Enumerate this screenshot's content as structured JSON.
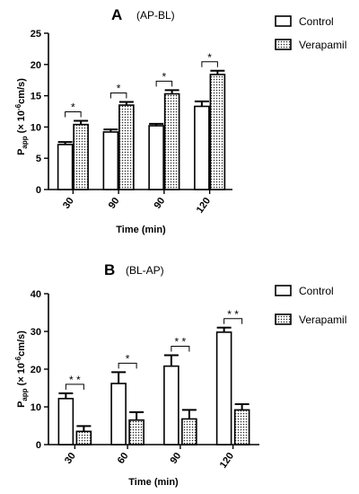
{
  "chart_data": [
    {
      "type": "bar",
      "panel_letter": "A",
      "title": "(AP-BL)",
      "xlabel": "Time (min)",
      "ylabel_main": "P",
      "ylabel_sub": "app",
      "ylabel_unit": "(× 10",
      "ylabel_exp": "-6",
      "ylabel_tail": "cm/s)",
      "ylim": [
        0,
        25
      ],
      "yticks": [
        "0",
        "5",
        "10",
        "15",
        "20",
        "25"
      ],
      "categories": [
        "30",
        "90",
        "90",
        "120"
      ],
      "series": [
        {
          "name": "Control",
          "pattern": "white",
          "values": [
            7.2,
            9.2,
            10.2,
            13.3
          ],
          "errors": [
            0.4,
            0.4,
            0.3,
            0.8
          ]
        },
        {
          "name": "Verapamil",
          "pattern": "dots",
          "values": [
            10.4,
            13.5,
            15.3,
            18.4
          ],
          "errors": [
            0.6,
            0.5,
            0.6,
            0.6
          ]
        }
      ],
      "significance": [
        "*",
        "*",
        "*",
        "*"
      ],
      "legend_position": "top-right"
    },
    {
      "type": "bar",
      "panel_letter": "B",
      "title": "(BL-AP)",
      "xlabel": "Time (min)",
      "ylabel_main": "P",
      "ylabel_sub": "app",
      "ylabel_unit": "(× 10",
      "ylabel_exp": "-6",
      "ylabel_tail": "cm/s)",
      "ylim": [
        0,
        40
      ],
      "yticks": [
        "0",
        "10",
        "20",
        "30",
        "40"
      ],
      "categories": [
        "30",
        "60",
        "90",
        "120"
      ],
      "series": [
        {
          "name": "Control",
          "pattern": "white",
          "values": [
            12.2,
            16.2,
            20.8,
            29.8
          ],
          "errors": [
            1.4,
            3.0,
            2.9,
            1.2
          ]
        },
        {
          "name": "Verapamil",
          "pattern": "dots",
          "values": [
            3.5,
            6.5,
            6.8,
            9.2
          ],
          "errors": [
            1.4,
            2.1,
            2.4,
            1.5
          ]
        }
      ],
      "significance": [
        "* *",
        "*",
        "* *",
        "* *"
      ],
      "legend_position": "top-right"
    }
  ]
}
